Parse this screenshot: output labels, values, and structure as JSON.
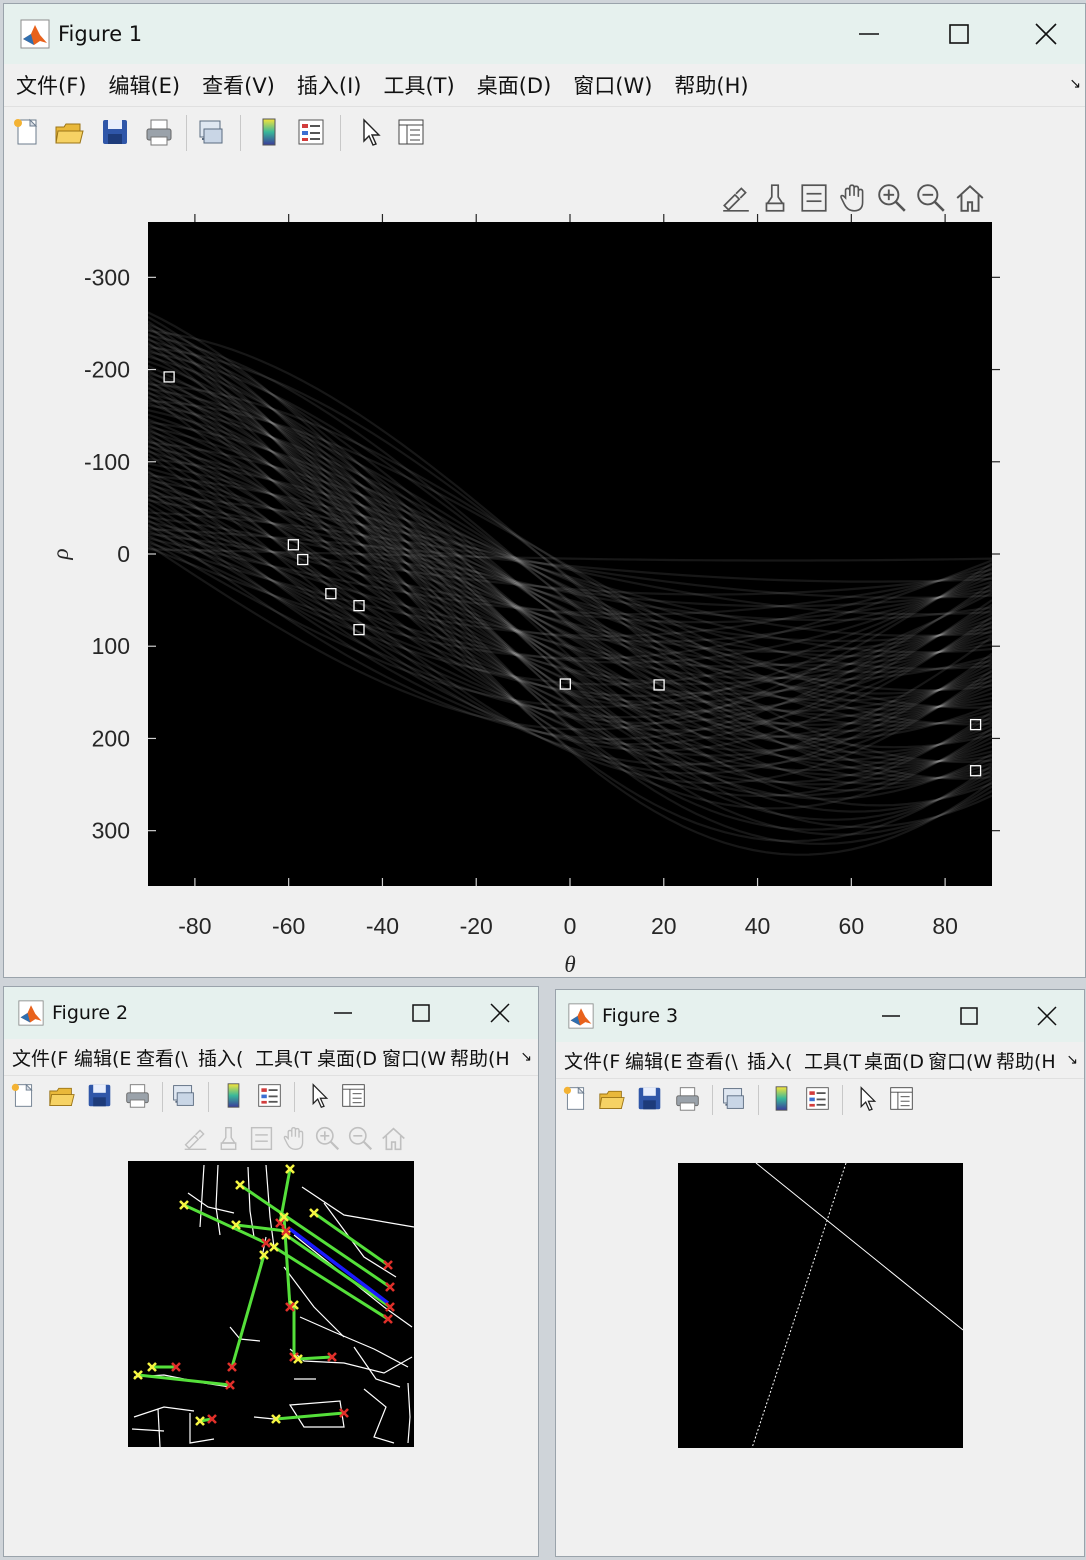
{
  "windows": {
    "fig1": {
      "title": "Figure 1"
    },
    "fig2": {
      "title": "Figure 2"
    },
    "fig3": {
      "title": "Figure 3"
    }
  },
  "menus": {
    "fig1": [
      "文件(F)",
      "编辑(E)",
      "查看(V)",
      "插入(I)",
      "工具(T)",
      "桌面(D)",
      "窗口(W)",
      "帮助(H)"
    ],
    "fig2": [
      "文件(F",
      "编辑(E",
      "查看(\\",
      "插入(",
      "工具(T",
      "桌面(D",
      "窗口(W",
      "帮助(H"
    ],
    "fig3": [
      "文件(F",
      "编辑(E",
      "查看(\\",
      "插入(",
      "工具(T",
      "桌面(D",
      "窗口(W",
      "帮助(H"
    ],
    "overflow_glyph": "↘"
  },
  "toolbar_icons": [
    "new-figure-icon",
    "open-file-icon",
    "save-icon",
    "print-icon",
    "link-plot-icon",
    "colorbar-icon",
    "legend-icon",
    "edit-plot-cursor-icon",
    "property-inspector-icon"
  ],
  "axes_toolbar_icons": [
    "brush-export-icon",
    "data-brush-icon",
    "datatip-icon",
    "pan-hand-icon",
    "zoom-in-icon",
    "zoom-out-icon",
    "home-restore-icon"
  ],
  "chart_data": [
    {
      "type": "heatmap",
      "title": "",
      "xlabel": "θ",
      "ylabel": "ρ",
      "xlim": [
        -90,
        90
      ],
      "ylim": [
        -360,
        360
      ],
      "y_reversed": true,
      "xticks": [
        -80,
        -60,
        -40,
        -20,
        0,
        20,
        40,
        60,
        80
      ],
      "yticks": [
        -300,
        -200,
        -100,
        0,
        100,
        200,
        300
      ],
      "colormap": "gray",
      "peaks": [
        {
          "theta": -85.5,
          "rho": -192
        },
        {
          "theta": -59,
          "rho": -10
        },
        {
          "theta": -57,
          "rho": 6
        },
        {
          "theta": -51,
          "rho": 43
        },
        {
          "theta": -45,
          "rho": 56
        },
        {
          "theta": -45,
          "rho": 82
        },
        {
          "theta": -1,
          "rho": 141
        },
        {
          "theta": 19,
          "rho": 142
        },
        {
          "theta": 86.5,
          "rho": 185
        },
        {
          "theta": 86.5,
          "rho": 235
        }
      ],
      "marker": "square",
      "marker_color": "#ffffff"
    },
    {
      "type": "overlay",
      "content": "edge image with detected Hough line segments",
      "segment_color": "#55e03a",
      "longest_segment_color": "#1a1aff",
      "start_marker_color": "#f5f542",
      "end_marker_color": "#e0302a"
    },
    {
      "type": "image",
      "content": "two detected lines drawn on black",
      "line_color": "#ffffff"
    }
  ]
}
